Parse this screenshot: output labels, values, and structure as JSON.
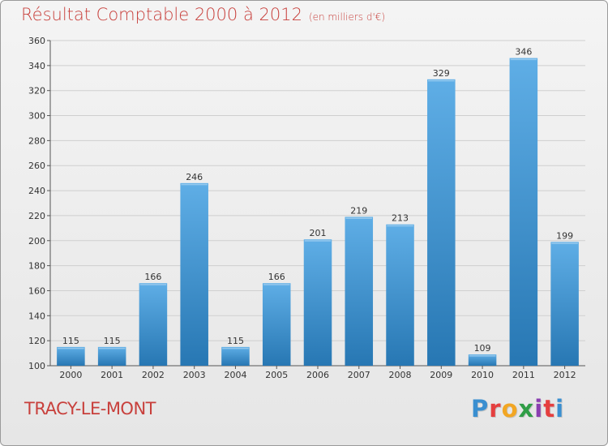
{
  "title": {
    "main": "Résultat Comptable 2000 à 2012",
    "unit": "(en milliers d'€)"
  },
  "commune": "TRACY-LE-MONT",
  "logo": {
    "letters": [
      {
        "ch": "P",
        "color": "#3a8fd0"
      },
      {
        "ch": "r",
        "color": "#e53f3f"
      },
      {
        "ch": "o",
        "color": "#f2a623"
      },
      {
        "ch": "x",
        "color": "#2f9d46"
      },
      {
        "ch": "i",
        "color": "#8a3fb0"
      },
      {
        "ch": "t",
        "color": "#e53f3f"
      },
      {
        "ch": "i",
        "color": "#3a8fd0"
      }
    ]
  },
  "colors": {
    "bar_top": "#5faee6",
    "bar_bottom": "#2777b3",
    "grid": "#cfcfcf",
    "axis": "#555555"
  },
  "chart_data": {
    "type": "bar",
    "title": "Résultat Comptable 2000 à 2012",
    "subtitle": "(en milliers d'€)",
    "xlabel": "",
    "ylabel": "",
    "categories": [
      "2000",
      "2001",
      "2002",
      "2003",
      "2004",
      "2005",
      "2006",
      "2007",
      "2008",
      "2009",
      "2010",
      "2011",
      "2012"
    ],
    "values": [
      115,
      115,
      166,
      246,
      115,
      166,
      201,
      219,
      213,
      329,
      109,
      346,
      199
    ],
    "ylim": [
      100,
      360
    ],
    "yticks": [
      100,
      120,
      140,
      160,
      180,
      200,
      220,
      240,
      260,
      280,
      300,
      320,
      340,
      360
    ],
    "grid": true,
    "legend": "none"
  }
}
